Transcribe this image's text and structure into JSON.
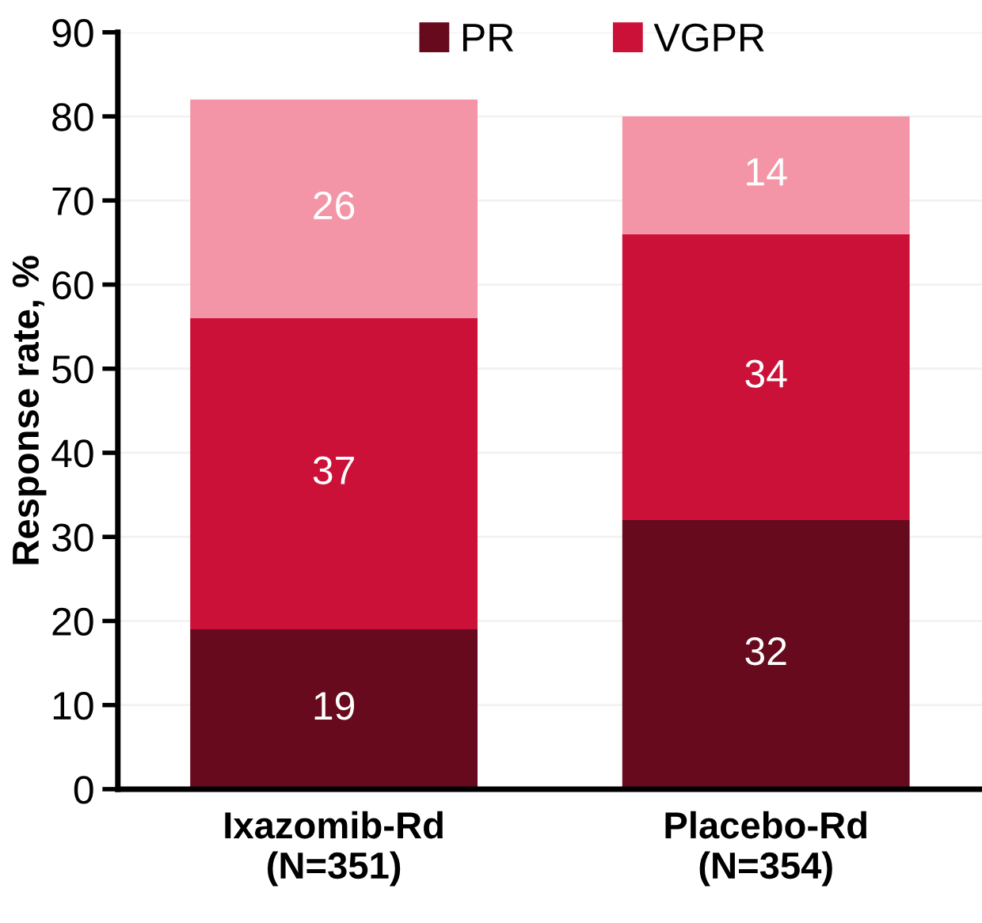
{
  "chart_data": {
    "type": "bar",
    "stacked": true,
    "ylabel": "Response rate, %",
    "categories": [
      "Ixazomib-Rd\n(N=351)",
      "Placebo-Rd\n(N=354)"
    ],
    "series": [
      {
        "name": "PR",
        "color": "#670a1e",
        "values": [
          19,
          32
        ]
      },
      {
        "name": "VGPR",
        "color": "#cc1139",
        "values": [
          37,
          34
        ]
      },
      {
        "color": "#f495a7",
        "values": [
          26,
          14
        ]
      }
    ],
    "ylim": [
      0,
      90
    ],
    "yticks": [
      0,
      10,
      20,
      30,
      40,
      50,
      60,
      70,
      80,
      90
    ],
    "grid": "y",
    "legend": "top",
    "data_labels": true
  }
}
